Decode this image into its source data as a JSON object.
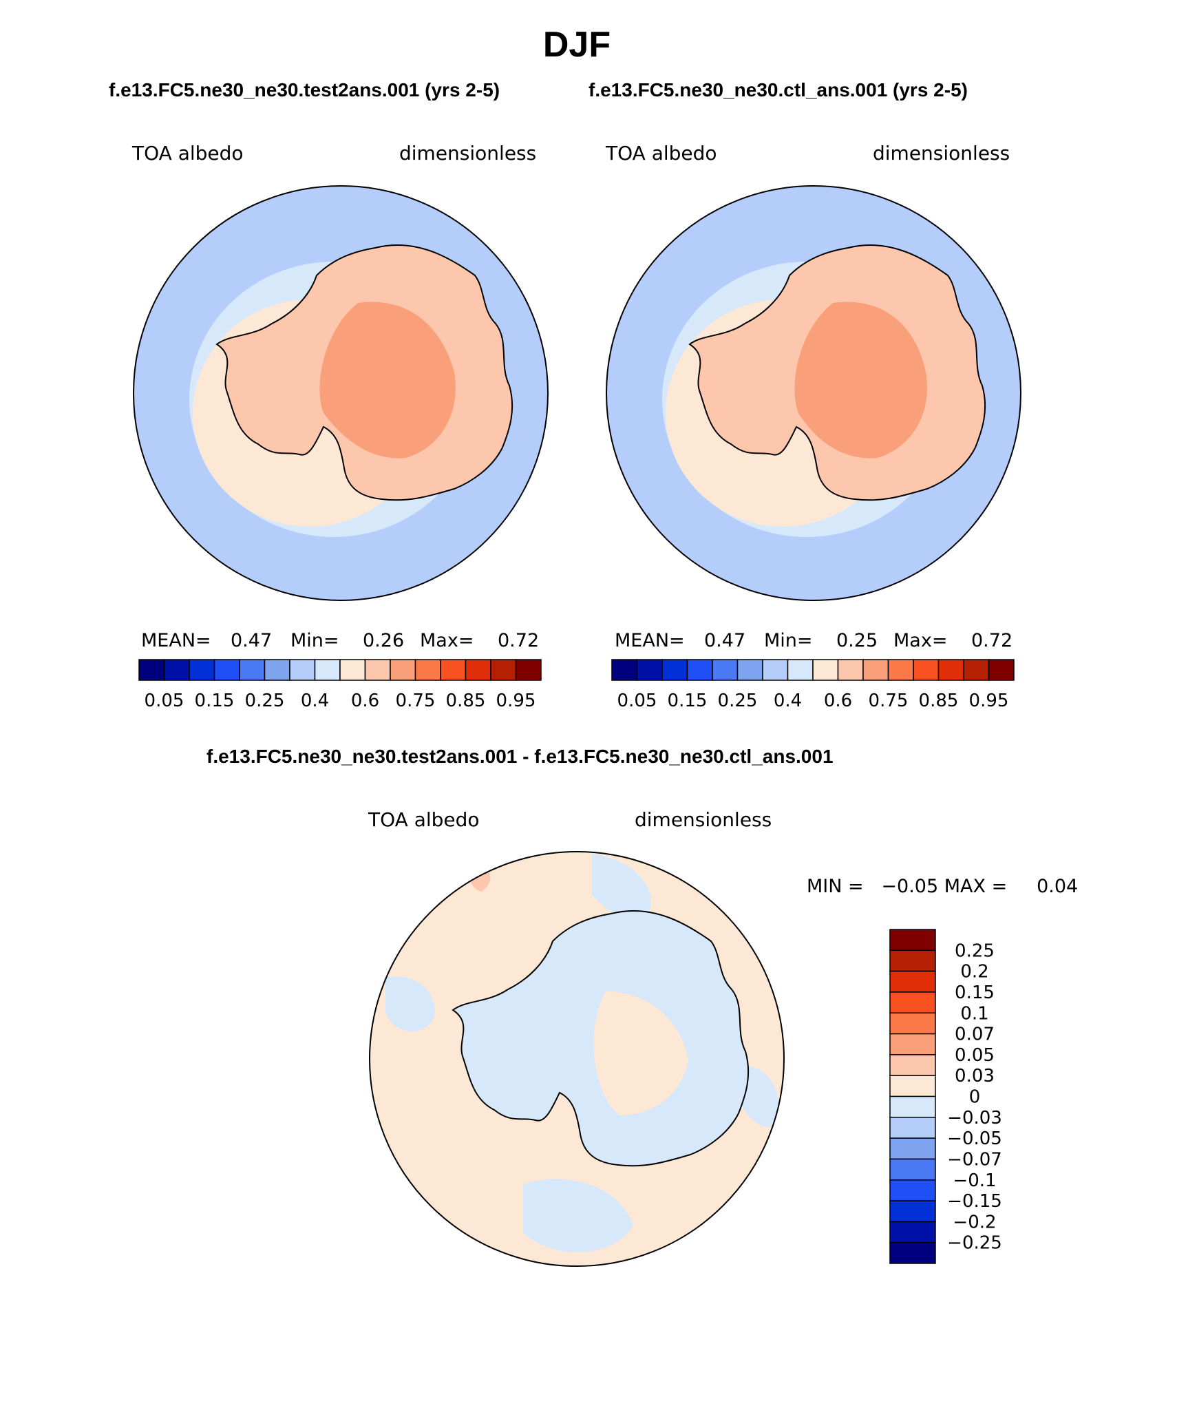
{
  "season_title": "DJF",
  "panel_left": {
    "case_title": "f.e13.FC5.ne30_ne30.test2ans.001 (yrs 2-5)",
    "variable": "TOA albedo",
    "units": "dimensionless",
    "stats": {
      "mean_label": "MEAN=",
      "mean": "0.47",
      "min_label": "Min=",
      "min": "0.26",
      "max_label": "Max=",
      "max": "0.72"
    }
  },
  "panel_right": {
    "case_title": "f.e13.FC5.ne30_ne30.ctl_ans.001 (yrs 2-5)",
    "variable": "TOA albedo",
    "units": "dimensionless",
    "stats": {
      "mean_label": "MEAN=",
      "mean": "0.47",
      "min_label": "Min=",
      "min": "0.25",
      "max_label": "Max=",
      "max": "0.72"
    }
  },
  "panel_diff": {
    "case_title": "f.e13.FC5.ne30_ne30.test2ans.001 - f.e13.FC5.ne30_ne30.ctl_ans.001",
    "variable": "TOA albedo",
    "units": "dimensionless",
    "minmax_text": "MIN =   −0.05 MAX =     0.04"
  },
  "colors": {
    "land_outline": "#000000",
    "ocean_base": "#b4cdfa",
    "diff_base": "#fde7d5",
    "diff_neg": "#d7e8fb"
  },
  "chart_data": [
    {
      "type": "heatmap",
      "projection": "south-polar-stereographic",
      "title": "f.e13.FC5.ne30_ne30.test2ans.001 (yrs 2-5)",
      "variable": "TOA albedo",
      "units": "dimensionless",
      "mean": 0.47,
      "min": 0.26,
      "max": 0.72,
      "colorbar": {
        "orientation": "horizontal",
        "tick_labels": [
          "0.05",
          "0.15",
          "0.25",
          "0.4",
          "0.6",
          "0.75",
          "0.85",
          "0.95"
        ],
        "colors": [
          "#00007f",
          "#0011a8",
          "#0030d6",
          "#1e4ff7",
          "#4b78f3",
          "#7ea4ef",
          "#b4cdfa",
          "#d7e8fb",
          "#fde7d5",
          "#fdc7ae",
          "#f9a07a",
          "#fb7a47",
          "#f95120",
          "#e02e09",
          "#b42001",
          "#800000"
        ]
      }
    },
    {
      "type": "heatmap",
      "projection": "south-polar-stereographic",
      "title": "f.e13.FC5.ne30_ne30.ctl_ans.001 (yrs 2-5)",
      "variable": "TOA albedo",
      "units": "dimensionless",
      "mean": 0.47,
      "min": 0.25,
      "max": 0.72,
      "colorbar": {
        "orientation": "horizontal",
        "tick_labels": [
          "0.05",
          "0.15",
          "0.25",
          "0.4",
          "0.6",
          "0.75",
          "0.85",
          "0.95"
        ],
        "colors": [
          "#00007f",
          "#0011a8",
          "#0030d6",
          "#1e4ff7",
          "#4b78f3",
          "#7ea4ef",
          "#b4cdfa",
          "#d7e8fb",
          "#fde7d5",
          "#fdc7ae",
          "#f9a07a",
          "#fb7a47",
          "#f95120",
          "#e02e09",
          "#b42001",
          "#800000"
        ]
      }
    },
    {
      "type": "heatmap",
      "projection": "south-polar-stereographic",
      "title": "f.e13.FC5.ne30_ne30.test2ans.001 - f.e13.FC5.ne30_ne30.ctl_ans.001",
      "variable": "TOA albedo",
      "units": "dimensionless",
      "min": -0.05,
      "max": 0.04,
      "colorbar": {
        "orientation": "vertical",
        "tick_labels": [
          "0.25",
          "0.2",
          "0.15",
          "0.1",
          "0.07",
          "0.05",
          "0.03",
          "0",
          "−0.03",
          "−0.05",
          "−0.07",
          "−0.1",
          "−0.15",
          "−0.2",
          "−0.25"
        ],
        "colors": [
          "#800000",
          "#b42001",
          "#e02e09",
          "#f95120",
          "#fb7a47",
          "#f9a07a",
          "#fdc7ae",
          "#fde7d5",
          "#d7e8fb",
          "#b4cdfa",
          "#7ea4ef",
          "#4b78f3",
          "#1e4ff7",
          "#0030d6",
          "#0011a8",
          "#00007f"
        ]
      }
    }
  ]
}
